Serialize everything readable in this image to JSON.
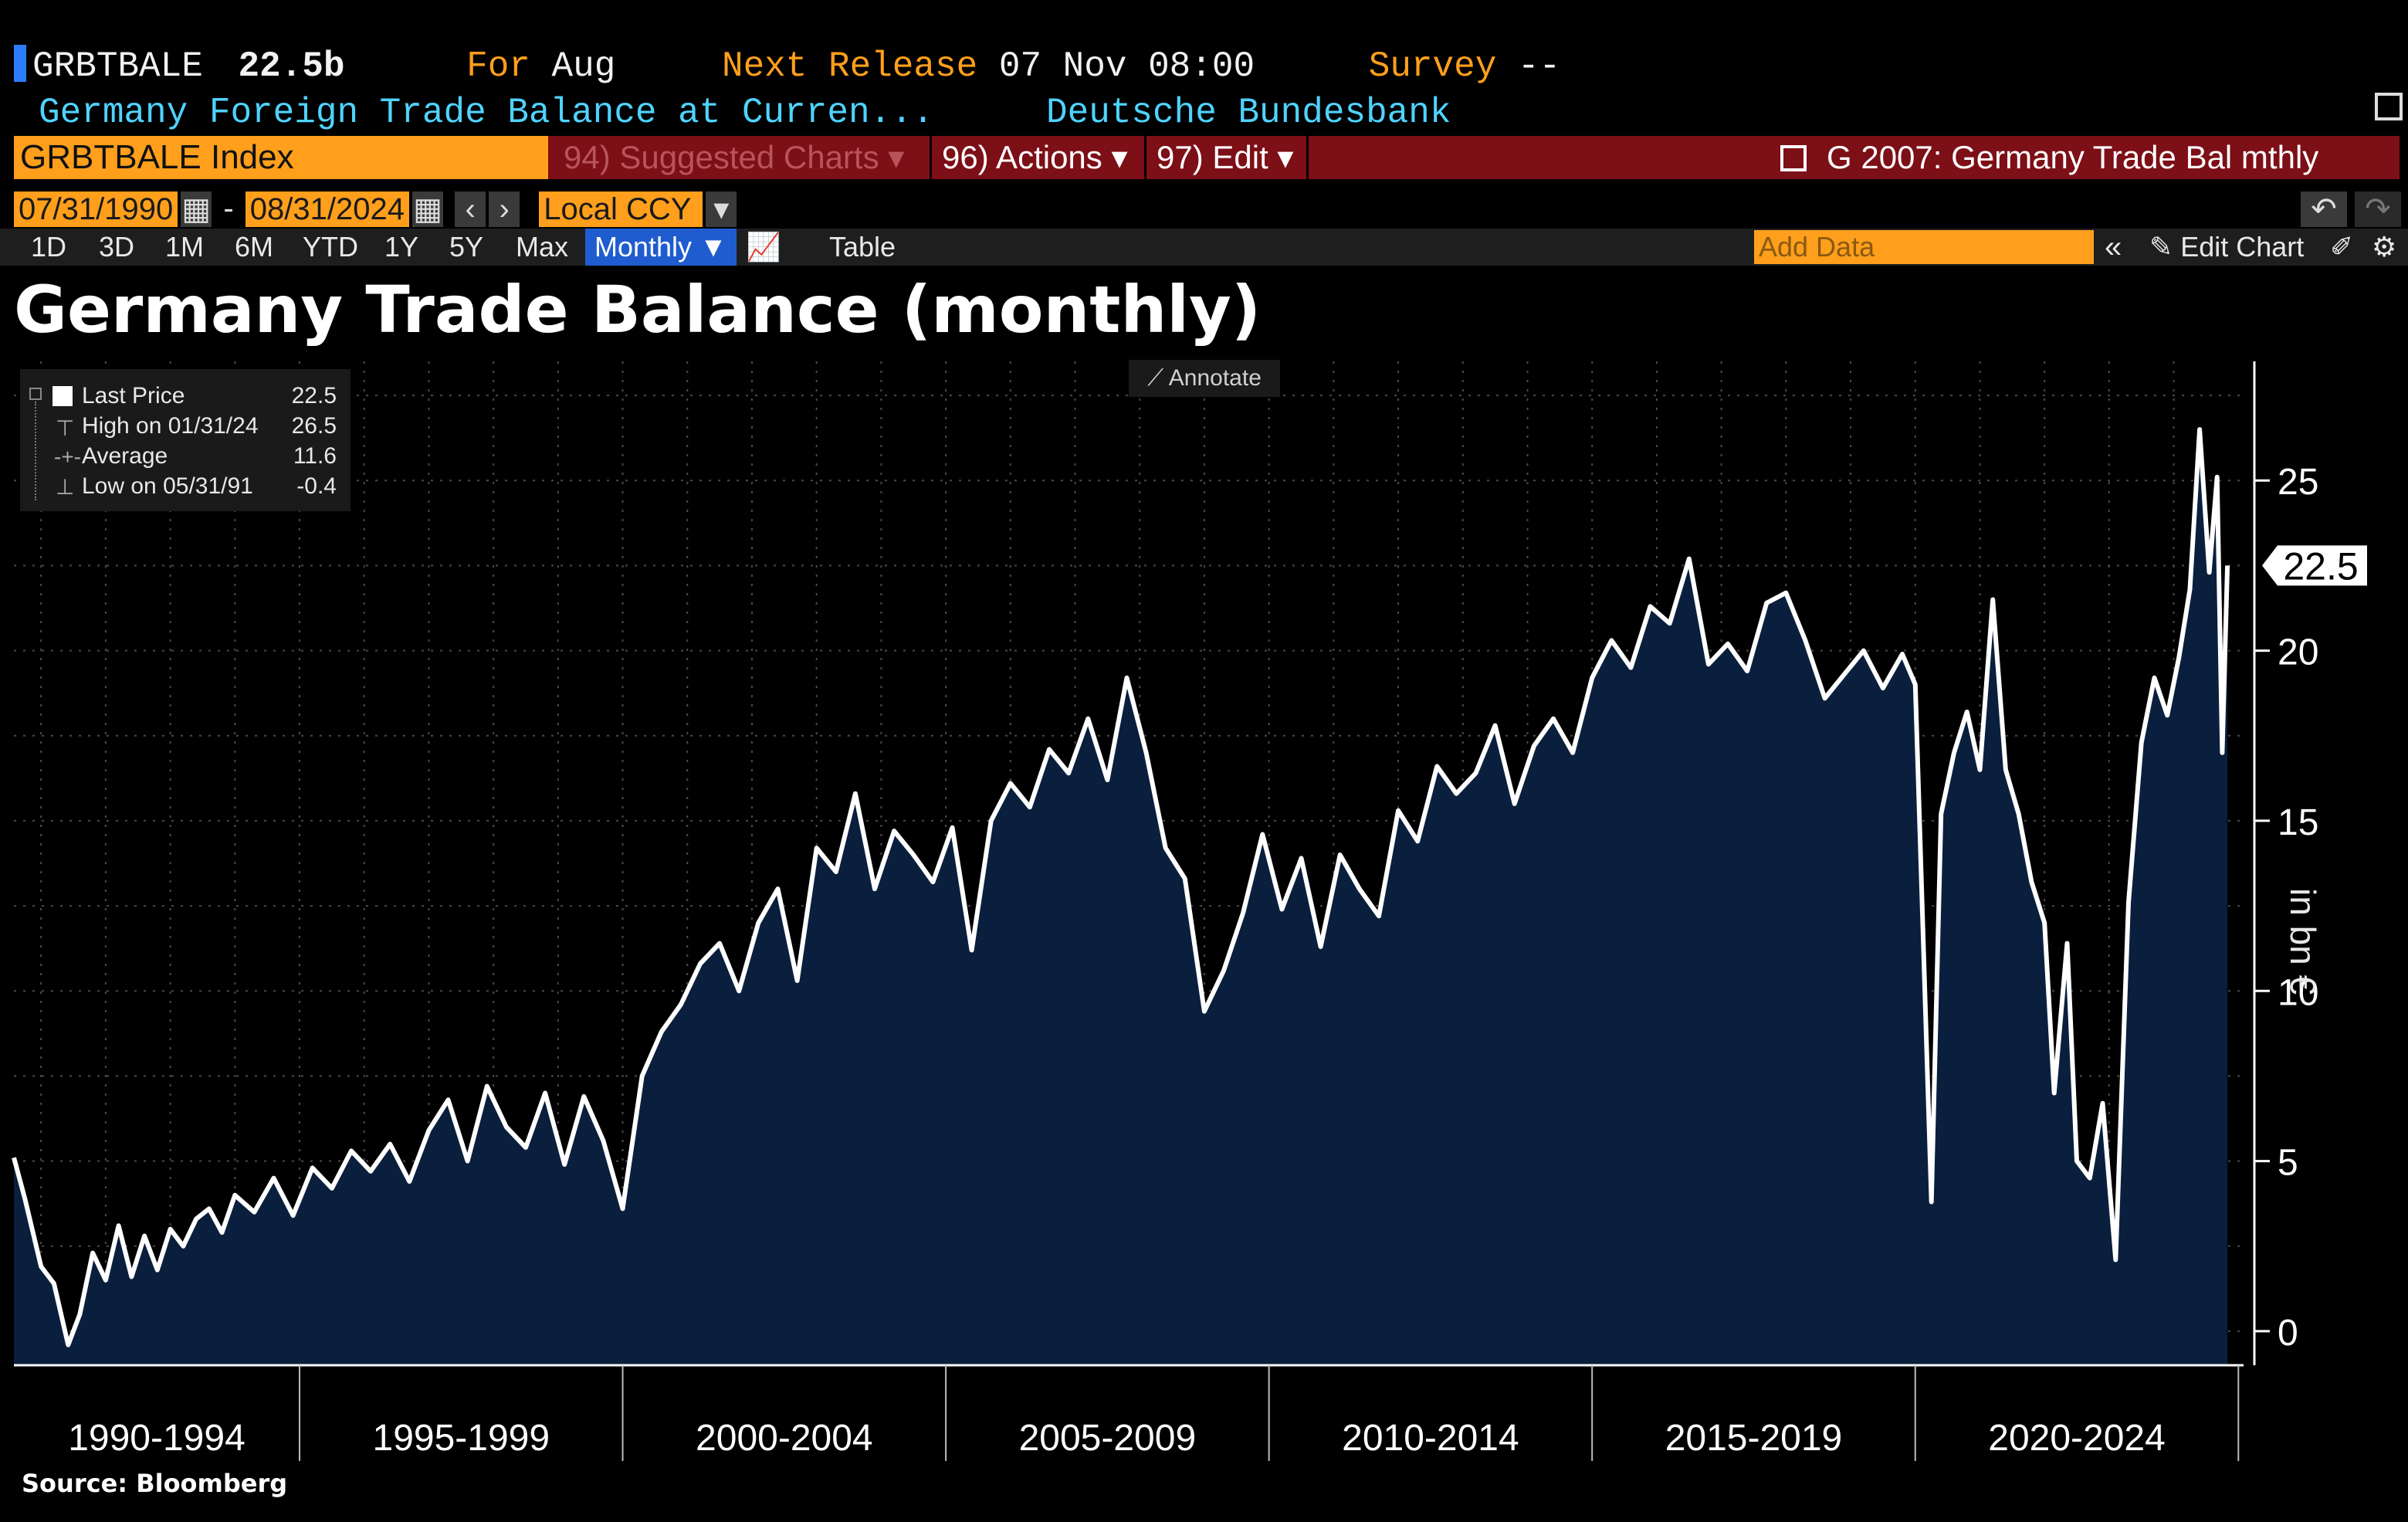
{
  "header": {
    "ticker": "GRBTBALE",
    "value": "22.5b",
    "for_label": "For",
    "for_value": "Aug",
    "next_label": "Next Release",
    "next_value": "07 Nov 08:00",
    "survey_label": "Survey",
    "survey_value": "--",
    "description": "Germany Foreign Trade Balance at Curren...",
    "source_name": "Deutsche Bundesbank"
  },
  "command_bar": {
    "security": "GRBTBALE Index",
    "suggested": "94) Suggested Charts",
    "actions": "96) Actions",
    "edit": "97) Edit",
    "chart_title": "G 2007: Germany Trade Bal mthly"
  },
  "range": {
    "start": "07/31/1990",
    "dash": "-",
    "end": "08/31/2024",
    "currency": "Local CCY"
  },
  "toolbar": {
    "periods": [
      "1D",
      "3D",
      "1M",
      "6M",
      "YTD",
      "1Y",
      "5Y",
      "Max"
    ],
    "frequency": "Monthly",
    "table": "Table",
    "add_data_placeholder": "Add Data",
    "edit_chart": "Edit Chart"
  },
  "annotate_label": "Annotate",
  "legend": {
    "rows": [
      {
        "label": "Last Price",
        "value": "22.5"
      },
      {
        "label": "High on 01/31/24",
        "value": "26.5"
      },
      {
        "label": "Average",
        "value": "11.6"
      },
      {
        "label": "Low on 05/31/91",
        "value": "-0.4"
      }
    ]
  },
  "source_note": "Source: Bloomberg",
  "colors": {
    "accent_orange": "#ff9f1c",
    "command_red": "#7d0f17",
    "area_fill": "#0a1f3d",
    "line": "#ffffff",
    "header_cyan": "#4fd3ff"
  },
  "chart_data": {
    "type": "area",
    "title": "Germany Trade Balance (monthly)",
    "ylabel": "in bn €",
    "ylim": [
      -1,
      28.5
    ],
    "y_ticks": [
      0,
      5,
      10,
      15,
      20,
      25
    ],
    "x_range": [
      1990.58,
      2025.08
    ],
    "x_tick_labels": [
      "1990-1994",
      "1995-1999",
      "2000-2004",
      "2005-2009",
      "2010-2014",
      "2015-2019",
      "2020-2024"
    ],
    "last_value_label": "22.5",
    "grid": true,
    "series": [
      {
        "x": [
          1990.58,
          1990.75,
          1991.0,
          1991.2,
          1991.42,
          1991.6,
          1991.8,
          1992.0,
          1992.2,
          1992.4,
          1992.6,
          1992.8,
          1993.0,
          1993.2,
          1993.4,
          1993.6,
          1993.8,
          1994.0,
          1994.3,
          1994.6,
          1994.9,
          1995.2,
          1995.5,
          1995.8,
          1996.1,
          1996.4,
          1996.7,
          1997.0,
          1997.3,
          1997.6,
          1997.9,
          1998.2,
          1998.5,
          1998.8,
          1999.1,
          1999.4,
          1999.7,
          2000.0,
          2000.3,
          2000.6,
          2000.9,
          2001.2,
          2001.5,
          2001.8,
          2002.1,
          2002.4,
          2002.7,
          2003.0,
          2003.3,
          2003.6,
          2003.9,
          2004.2,
          2004.5,
          2004.8,
          2005.1,
          2005.4,
          2005.7,
          2006.0,
          2006.3,
          2006.6,
          2006.9,
          2007.2,
          2007.5,
          2007.8,
          2008.1,
          2008.4,
          2008.7,
          2009.0,
          2009.3,
          2009.6,
          2009.9,
          2010.2,
          2010.5,
          2010.8,
          2011.1,
          2011.4,
          2011.7,
          2012.0,
          2012.3,
          2012.6,
          2012.9,
          2013.2,
          2013.5,
          2013.8,
          2014.1,
          2014.4,
          2014.7,
          2015.0,
          2015.3,
          2015.6,
          2015.9,
          2016.2,
          2016.5,
          2016.8,
          2017.1,
          2017.4,
          2017.7,
          2018.0,
          2018.3,
          2018.6,
          2018.9,
          2019.2,
          2019.5,
          2019.8,
          2020.0,
          2020.25,
          2020.4,
          2020.6,
          2020.8,
          2021.0,
          2021.2,
          2021.4,
          2021.6,
          2021.8,
          2022.0,
          2022.15,
          2022.35,
          2022.5,
          2022.7,
          2022.9,
          2023.1,
          2023.3,
          2023.5,
          2023.7,
          2023.9,
          2024.08,
          2024.25,
          2024.4,
          2024.55,
          2024.67,
          2024.75,
          2024.83
        ],
        "values": [
          5.1,
          3.9,
          1.9,
          1.4,
          -0.4,
          0.5,
          2.3,
          1.5,
          3.1,
          1.6,
          2.8,
          1.8,
          3.0,
          2.5,
          3.3,
          3.6,
          2.9,
          4.0,
          3.5,
          4.5,
          3.4,
          4.8,
          4.2,
          5.3,
          4.7,
          5.5,
          4.4,
          5.9,
          6.8,
          5.0,
          7.2,
          6.0,
          5.4,
          7.0,
          4.9,
          6.9,
          5.6,
          3.6,
          7.5,
          8.8,
          9.6,
          10.8,
          11.4,
          10.0,
          12.0,
          13.0,
          10.3,
          14.2,
          13.5,
          15.8,
          13.0,
          14.7,
          14.0,
          13.2,
          14.8,
          11.2,
          15.0,
          16.1,
          15.4,
          17.1,
          16.4,
          18.0,
          16.2,
          19.2,
          17.0,
          14.2,
          13.3,
          9.4,
          10.6,
          12.3,
          14.6,
          12.4,
          13.9,
          11.3,
          14.0,
          13.0,
          12.2,
          15.3,
          14.4,
          16.6,
          15.8,
          16.4,
          17.8,
          15.5,
          17.2,
          18.0,
          17.0,
          19.2,
          20.3,
          19.5,
          21.3,
          20.8,
          22.7,
          19.6,
          20.2,
          19.4,
          21.4,
          21.7,
          20.3,
          18.6,
          19.3,
          20.0,
          18.9,
          19.9,
          19.0,
          3.8,
          15.2,
          17.0,
          18.2,
          16.5,
          21.5,
          16.5,
          15.2,
          13.2,
          12.0,
          7.0,
          11.4,
          5.0,
          4.5,
          6.7,
          2.1,
          12.6,
          17.3,
          19.2,
          18.1,
          19.8,
          21.8,
          26.5,
          22.3,
          25.1,
          17.0,
          22.5
        ]
      }
    ]
  }
}
